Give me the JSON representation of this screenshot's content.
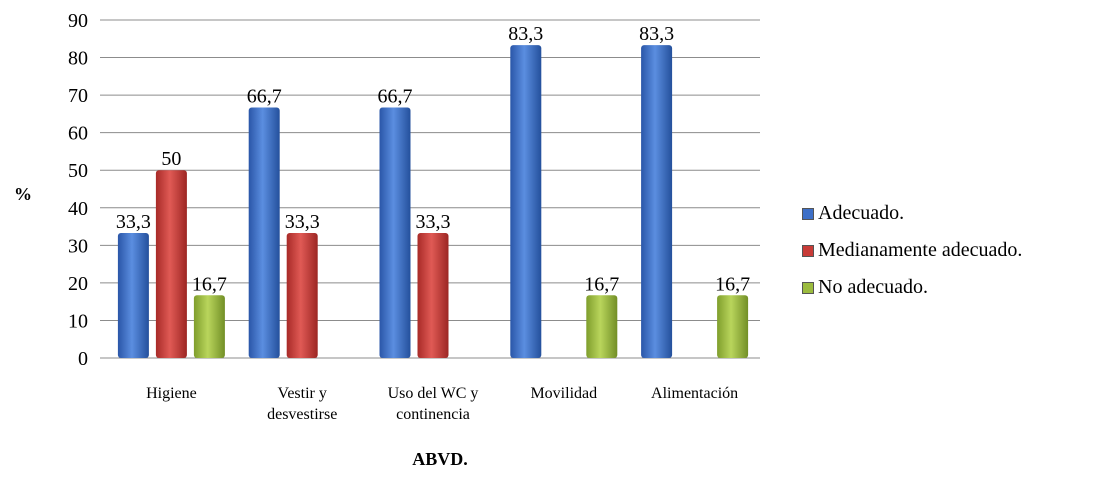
{
  "chart_data": {
    "type": "bar",
    "categories": [
      [
        "Higiene"
      ],
      [
        "Vestir y",
        "desvestirse"
      ],
      [
        "Uso del WC y",
        "continencia"
      ],
      [
        "Movilidad"
      ],
      [
        "Alimentación"
      ]
    ],
    "series": [
      {
        "name": "Adecuado.",
        "color": "#3d6fc7",
        "values": [
          33.3,
          66.7,
          66.7,
          83.3,
          83.3
        ],
        "labels": [
          "33,3",
          "66,7",
          "66,7",
          "83,3",
          "83,3"
        ]
      },
      {
        "name": "Medianamente adecuado.",
        "color": "#c83b37",
        "values": [
          50,
          33.3,
          33.3,
          null,
          null
        ],
        "labels": [
          "50",
          "33,3",
          "33,3",
          "",
          ""
        ]
      },
      {
        "name": "No adecuado.",
        "color": "#9bbb3e",
        "values": [
          16.7,
          null,
          null,
          16.7,
          16.7
        ],
        "labels": [
          "16,7",
          "",
          "",
          "16,7",
          "16,7"
        ]
      }
    ],
    "ylabel": "%",
    "xlabel": "ABVD.",
    "ylim": [
      0,
      90
    ],
    "yticks": [
      "0",
      "10",
      "20",
      "30",
      "40",
      "50",
      "60",
      "70",
      "80",
      "90"
    ],
    "grid": true,
    "legend_position": "right"
  }
}
